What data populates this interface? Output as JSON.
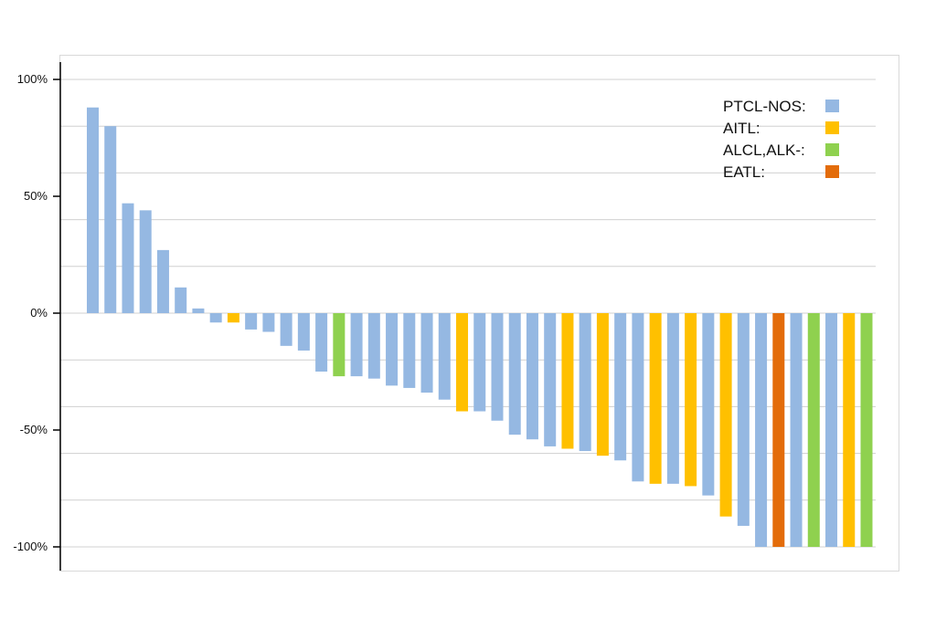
{
  "chart_data": {
    "type": "bar",
    "title": "",
    "xlabel": "",
    "ylabel": "",
    "ylim": [
      -100,
      100
    ],
    "y_ticks": [
      {
        "value": 100,
        "label": "100%"
      },
      {
        "value": 50,
        "label": "50%"
      },
      {
        "value": 0,
        "label": "0%"
      },
      {
        "value": -50,
        "label": "-50%"
      },
      {
        "value": -100,
        "label": "-100%"
      }
    ],
    "gridlines": [
      100,
      80,
      60,
      40,
      20,
      0,
      -20,
      -40,
      -60,
      -80,
      -100
    ],
    "grid": true,
    "legend_position": "top-right",
    "legend": [
      {
        "key": "PTCL-NOS",
        "label": "PTCL-NOS:",
        "color": "#95b8e2"
      },
      {
        "key": "AITL",
        "label": "AITL:",
        "color": "#ffc000"
      },
      {
        "key": "ALCL",
        "label": "ALCL,ALK-:",
        "color": "#8fd14f"
      },
      {
        "key": "EATL",
        "label": "EATL:",
        "color": "#e36c0a"
      }
    ],
    "bars": [
      {
        "value": 88,
        "group": "PTCL-NOS"
      },
      {
        "value": 80,
        "group": "PTCL-NOS"
      },
      {
        "value": 47,
        "group": "PTCL-NOS"
      },
      {
        "value": 44,
        "group": "PTCL-NOS"
      },
      {
        "value": 27,
        "group": "PTCL-NOS"
      },
      {
        "value": 11,
        "group": "PTCL-NOS"
      },
      {
        "value": 2,
        "group": "PTCL-NOS"
      },
      {
        "value": -4,
        "group": "PTCL-NOS"
      },
      {
        "value": -4,
        "group": "AITL"
      },
      {
        "value": -7,
        "group": "PTCL-NOS"
      },
      {
        "value": -8,
        "group": "PTCL-NOS"
      },
      {
        "value": -14,
        "group": "PTCL-NOS"
      },
      {
        "value": -16,
        "group": "PTCL-NOS"
      },
      {
        "value": -25,
        "group": "PTCL-NOS"
      },
      {
        "value": -27,
        "group": "ALCL"
      },
      {
        "value": -27,
        "group": "PTCL-NOS"
      },
      {
        "value": -28,
        "group": "PTCL-NOS"
      },
      {
        "value": -31,
        "group": "PTCL-NOS"
      },
      {
        "value": -32,
        "group": "PTCL-NOS"
      },
      {
        "value": -34,
        "group": "PTCL-NOS"
      },
      {
        "value": -37,
        "group": "PTCL-NOS"
      },
      {
        "value": -42,
        "group": "AITL"
      },
      {
        "value": -42,
        "group": "PTCL-NOS"
      },
      {
        "value": -46,
        "group": "PTCL-NOS"
      },
      {
        "value": -52,
        "group": "PTCL-NOS"
      },
      {
        "value": -54,
        "group": "PTCL-NOS"
      },
      {
        "value": -57,
        "group": "PTCL-NOS"
      },
      {
        "value": -58,
        "group": "AITL"
      },
      {
        "value": -59,
        "group": "PTCL-NOS"
      },
      {
        "value": -61,
        "group": "AITL"
      },
      {
        "value": -63,
        "group": "PTCL-NOS"
      },
      {
        "value": -72,
        "group": "PTCL-NOS"
      },
      {
        "value": -73,
        "group": "AITL"
      },
      {
        "value": -73,
        "group": "PTCL-NOS"
      },
      {
        "value": -74,
        "group": "AITL"
      },
      {
        "value": -78,
        "group": "PTCL-NOS"
      },
      {
        "value": -87,
        "group": "AITL"
      },
      {
        "value": -91,
        "group": "PTCL-NOS"
      },
      {
        "value": -100,
        "group": "PTCL-NOS"
      },
      {
        "value": -100,
        "group": "EATL"
      },
      {
        "value": -100,
        "group": "PTCL-NOS"
      },
      {
        "value": -100,
        "group": "ALCL"
      },
      {
        "value": -100,
        "group": "PTCL-NOS"
      },
      {
        "value": -100,
        "group": "AITL"
      },
      {
        "value": -100,
        "group": "ALCL"
      }
    ]
  }
}
